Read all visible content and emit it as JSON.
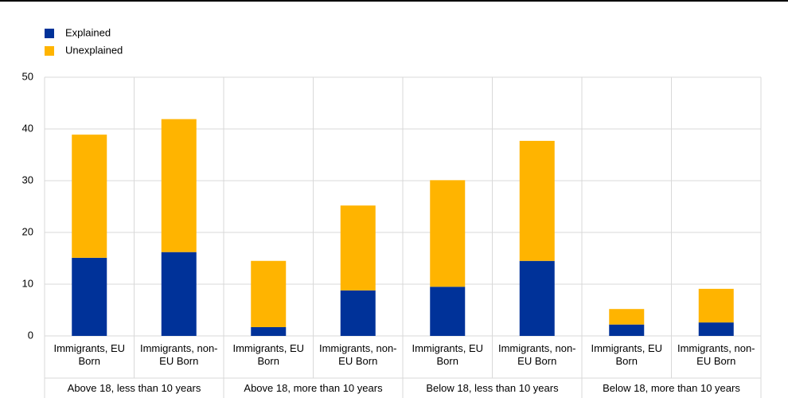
{
  "chart_data": {
    "type": "stacked_bar",
    "categories": [
      "Immigrants, EU Born",
      "Immigrants, non-EU Born",
      "Immigrants, EU Born",
      "Immigrants, non-EU Born",
      "Immigrants, EU Born",
      "Immigrants, non-EU Born",
      "Immigrants, EU Born",
      "Immigrants, non-EU Born"
    ],
    "groups": [
      "Above 18, less than 10 years",
      "Above 18, more than 10 years",
      "Below 18, less than 10 years",
      "Below 18, more than 10 years"
    ],
    "series": [
      {
        "name": "Explained",
        "color": "#003299",
        "values": [
          15.1,
          16.2,
          1.7,
          8.8,
          9.5,
          14.5,
          2.2,
          2.6
        ]
      },
      {
        "name": "Unexplained",
        "color": "#ffb400",
        "values": [
          23.8,
          25.7,
          12.8,
          16.4,
          20.6,
          23.2,
          3.0,
          6.5
        ]
      }
    ],
    "ylim": [
      0,
      50
    ],
    "yticks": [
      0,
      10,
      20,
      30,
      40,
      50
    ],
    "grid": true,
    "legend": "top-left"
  }
}
